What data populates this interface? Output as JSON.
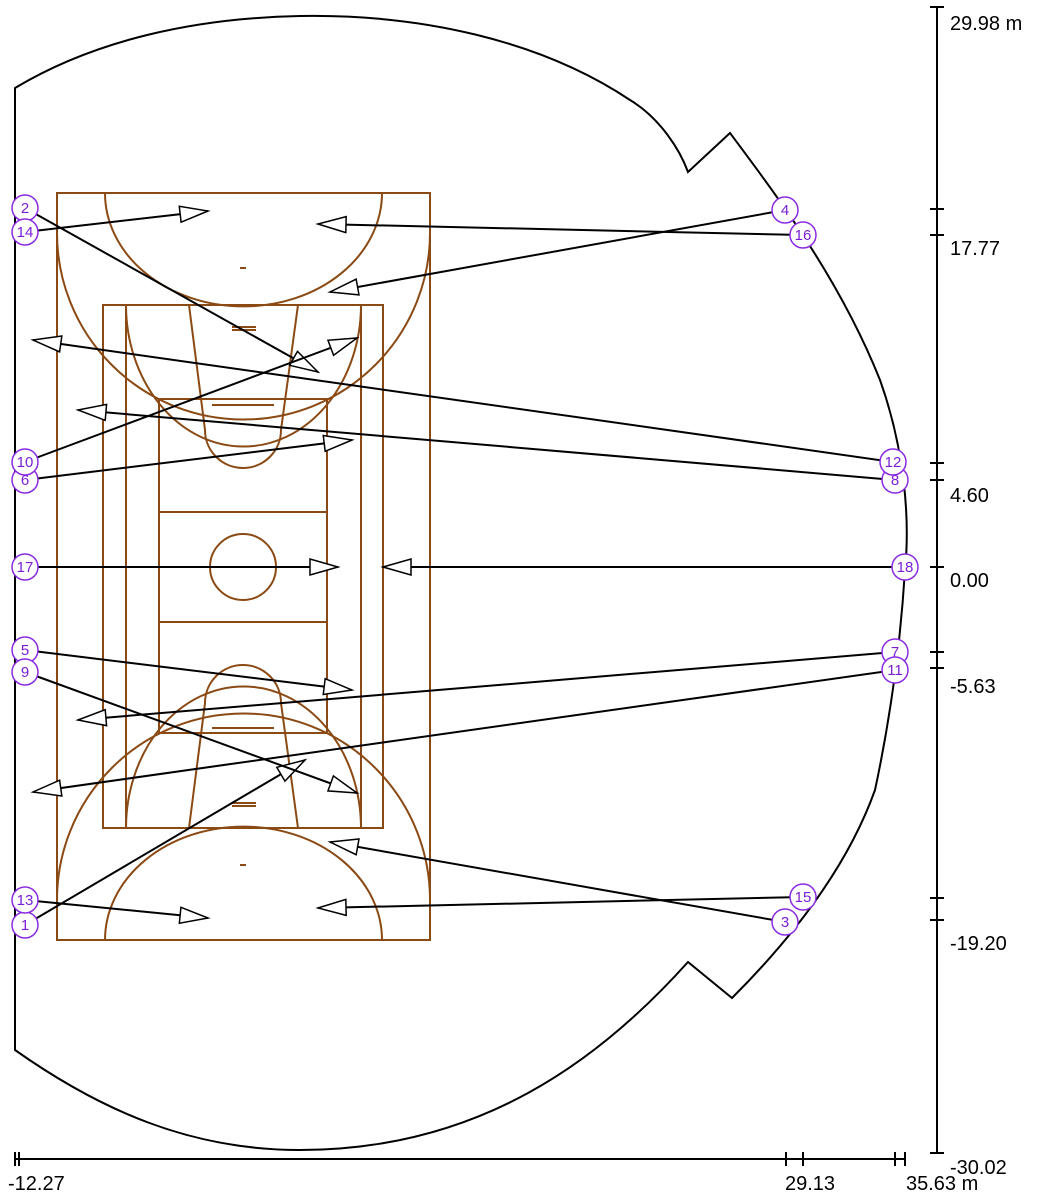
{
  "diagram": {
    "type": "lighting-aiming-plan",
    "boundary": {
      "label": "arena-outline"
    },
    "vertical_scale": {
      "labels": [
        "29.98 m",
        "17.77",
        "4.60",
        "0.00",
        "-5.63",
        "-19.20",
        "-30.02"
      ]
    },
    "horizontal_scale": {
      "labels": [
        "-12.27",
        "29.13",
        "35.63 m"
      ]
    },
    "fixtures": [
      {
        "id": "1"
      },
      {
        "id": "2"
      },
      {
        "id": "3"
      },
      {
        "id": "4"
      },
      {
        "id": "5"
      },
      {
        "id": "6"
      },
      {
        "id": "7"
      },
      {
        "id": "8"
      },
      {
        "id": "9"
      },
      {
        "id": "10"
      },
      {
        "id": "11"
      },
      {
        "id": "12"
      },
      {
        "id": "13"
      },
      {
        "id": "14"
      },
      {
        "id": "15"
      },
      {
        "id": "16"
      },
      {
        "id": "17"
      },
      {
        "id": "18"
      }
    ],
    "colors": {
      "court_lines": "#8b4a14",
      "fixture_circles": "#8a2be2",
      "fixture_text": "#7a1fd6",
      "outline": "#000000"
    }
  }
}
